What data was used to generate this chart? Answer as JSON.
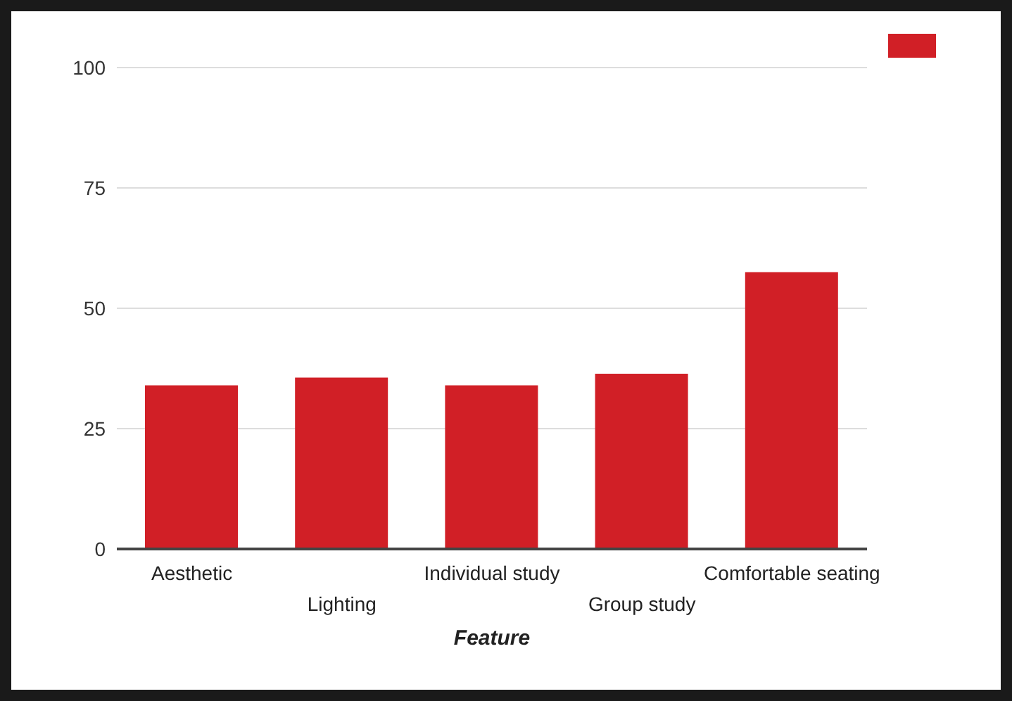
{
  "chart_data": {
    "type": "bar",
    "xlabel": "Feature",
    "categories": [
      "Aesthetic",
      "Lighting",
      "Individual study",
      "Group study",
      "Comfortable seating"
    ],
    "series": [
      {
        "color": "#d11f26",
        "values": [
          34,
          35.6,
          34,
          36.4,
          57.5
        ]
      }
    ],
    "ylim": [
      0,
      100
    ],
    "yticks": [
      0,
      25,
      50,
      75,
      100
    ],
    "grid": "y"
  }
}
